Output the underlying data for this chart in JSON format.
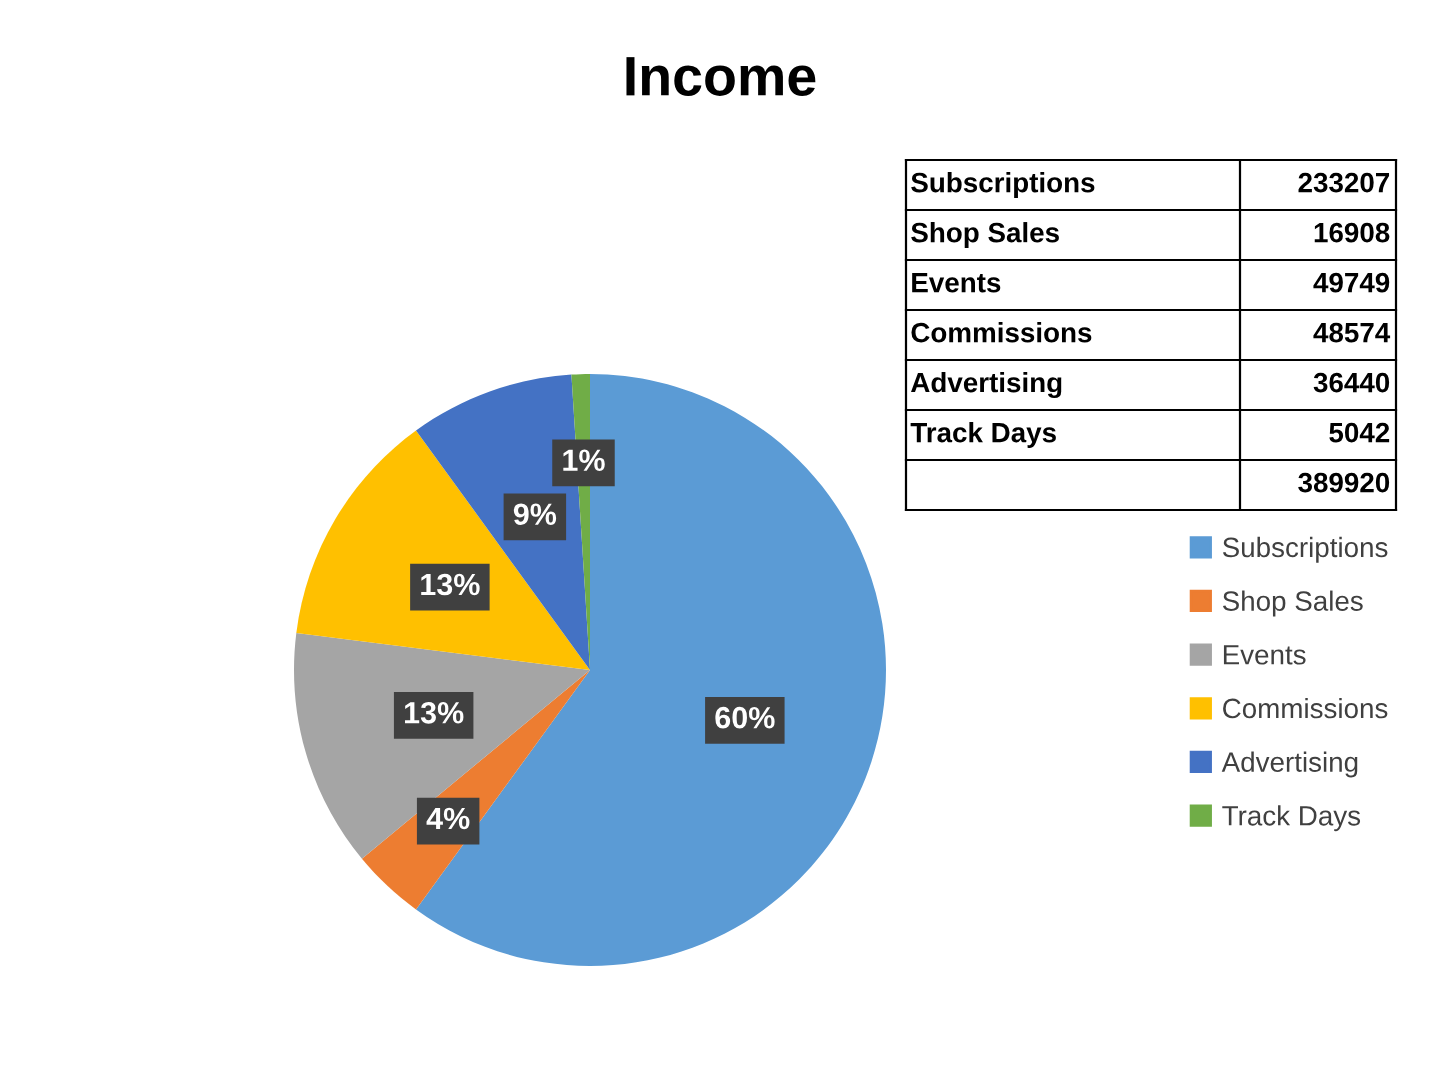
{
  "chart_data": {
    "type": "pie",
    "title": "Income",
    "categories": [
      "Subscriptions",
      "Shop Sales",
      "Events",
      "Commissions",
      "Advertising",
      "Track Days"
    ],
    "values": [
      60,
      4,
      13,
      13,
      9,
      1
    ],
    "colors": [
      "#5b9bd5",
      "#ed7d31",
      "#a5a5a5",
      "#ffc000",
      "#4472c4",
      "#70ad47"
    ],
    "value_labels": [
      "60%",
      "4%",
      "13%",
      "13%",
      "9%",
      "1%"
    ],
    "annotations": [
      "Subscriptions",
      "233207",
      "Shop Sales",
      "16908",
      "Events",
      "49749",
      "Commissions",
      "48574",
      "Advertising",
      "36440",
      "Track Days",
      "5042",
      "389920"
    ],
    "legend": "right"
  }
}
